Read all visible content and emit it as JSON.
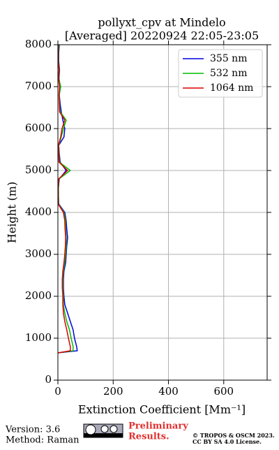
{
  "chart_data": {
    "type": "line",
    "title": "pollyxt_cpv at Mindelo",
    "subtitle": "[Averaged] 20220924 22:05-23:05",
    "x_label": "Extinction Coefficient [Mm⁻¹]",
    "y_label": "Height (m)",
    "xlim": [
      0,
      757
    ],
    "xticks": [
      0,
      200,
      400,
      600
    ],
    "ylim": [
      0,
      8000
    ],
    "yticks": [
      0,
      1000,
      2000,
      3000,
      4000,
      5000,
      6000,
      7000,
      8000
    ],
    "grid": true,
    "legend": "upper right",
    "y": [
      650,
      700,
      800,
      1000,
      1200,
      1400,
      1600,
      1800,
      2000,
      2200,
      2400,
      2600,
      2800,
      3000,
      3200,
      3400,
      3600,
      3800,
      4000,
      4200,
      4400,
      4600,
      4800,
      5000,
      5200,
      5400,
      5600,
      5800,
      6000,
      6200,
      6400,
      6600,
      6800,
      7000,
      7200,
      7400,
      7600,
      7800,
      8000
    ],
    "series": [
      {
        "name": "355 nm",
        "color": "#0000dd",
        "values": [
          0,
          70,
          68,
          60,
          55,
          45,
          35,
          25,
          22,
          20,
          20,
          22,
          28,
          30,
          32,
          35,
          32,
          30,
          25,
          3,
          2,
          2,
          5,
          30,
          8,
          5,
          3,
          22,
          25,
          18,
          12,
          8,
          5,
          8,
          4,
          6,
          3,
          3,
          5
        ]
      },
      {
        "name": "532 nm",
        "color": "#00bb00",
        "values": [
          0,
          55,
          55,
          48,
          42,
          32,
          25,
          20,
          20,
          18,
          18,
          20,
          25,
          28,
          30,
          30,
          28,
          28,
          22,
          2,
          2,
          2,
          4,
          45,
          5,
          4,
          3,
          12,
          20,
          30,
          8,
          6,
          5,
          10,
          3,
          5,
          2,
          2,
          3
        ]
      },
      {
        "name": "1064 nm",
        "color": "#dd0000",
        "values": [
          0,
          45,
          45,
          38,
          32,
          25,
          20,
          18,
          18,
          16,
          16,
          18,
          22,
          25,
          27,
          28,
          26,
          25,
          20,
          1,
          1,
          1,
          3,
          35,
          4,
          3,
          2,
          10,
          15,
          25,
          6,
          5,
          4,
          6,
          2,
          4,
          1,
          1,
          1
        ]
      }
    ]
  },
  "footer": {
    "version": "Version: 3.6",
    "method": "Method: Raman",
    "preliminary": [
      "Preliminary",
      "Results."
    ],
    "copyright": [
      "© TROPOS & OSCM 2023.",
      "CC BY SA 4.0 License."
    ]
  }
}
